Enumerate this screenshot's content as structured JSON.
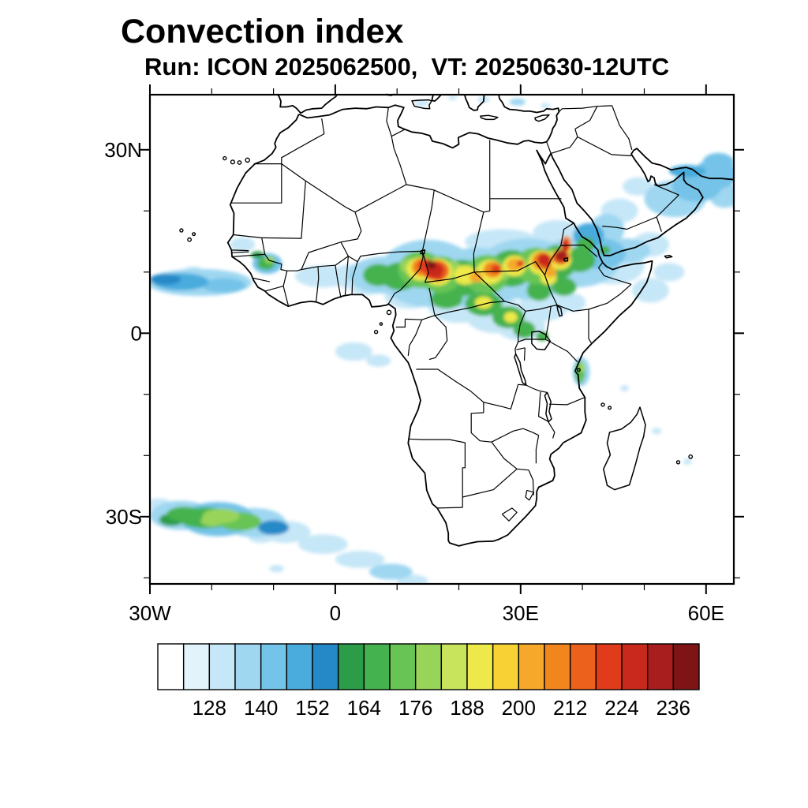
{
  "title": "Convection index",
  "subtitle": "Run: ICON 2025062500,  VT: 20250630-12UTC",
  "axes": {
    "x_tick_labels": [
      "30W",
      "0",
      "30E",
      "60E"
    ],
    "x_tick_lons": [
      -30,
      0,
      30,
      60
    ],
    "y_tick_labels": [
      "30N",
      "0",
      "30S"
    ],
    "y_tick_lats": [
      30,
      0,
      -30
    ]
  },
  "colorbar": {
    "tick_labels": [
      "128",
      "140",
      "152",
      "164",
      "176",
      "188",
      "200",
      "212",
      "224",
      "236"
    ],
    "level_start": 116,
    "level_step": 6,
    "colors": [
      "#FFFFFF",
      "#E3F3FB",
      "#C6E7F7",
      "#9FD7F1",
      "#74C3E8",
      "#4AACDD",
      "#2589C8",
      "#2D9C49",
      "#44B24E",
      "#68C455",
      "#98D45A",
      "#C8E35C",
      "#EDE94A",
      "#F8D134",
      "#F5A82A",
      "#F1861F",
      "#EC611B",
      "#E03C1B",
      "#C9281C",
      "#A81D1D",
      "#7E1416"
    ]
  },
  "chart_data": {
    "type": "heatmap",
    "title": "Convection index",
    "model_run": "ICON 2025062500",
    "valid_time": "20250630-12UTC",
    "projection": "equirectangular",
    "lon_range": [
      -30,
      64.5
    ],
    "lat_range": [
      -41,
      39
    ],
    "legend_values": [
      128,
      140,
      152,
      164,
      176,
      188,
      200,
      212,
      224,
      236
    ],
    "region_columns": [
      "lon",
      "lat",
      "rx_deg",
      "ry_deg",
      "value"
    ],
    "regions": [
      [
        -22,
        8.3,
        8.5,
        2.2,
        137
      ],
      [
        -25,
        8.4,
        4.5,
        1.4,
        146
      ],
      [
        -27.5,
        8.8,
        2.5,
        0.9,
        152
      ],
      [
        -18,
        7.8,
        3.5,
        1.2,
        140
      ],
      [
        -23,
        10.3,
        1.5,
        0.6,
        131
      ],
      [
        -15,
        14.5,
        2,
        1.2,
        128
      ],
      [
        -11,
        11.4,
        2.4,
        1.7,
        140
      ],
      [
        -11.2,
        11.4,
        1.4,
        1,
        164
      ],
      [
        -10.6,
        12,
        0.8,
        0.6,
        176
      ],
      [
        -12.6,
        12.8,
        1.1,
        0.6,
        158
      ],
      [
        -2,
        9.3,
        4.5,
        1.8,
        128
      ],
      [
        3,
        9.3,
        4,
        2,
        131
      ],
      [
        8,
        9.5,
        6,
        3,
        134
      ],
      [
        15,
        9.8,
        8,
        5.5,
        137
      ],
      [
        23,
        9,
        8,
        5,
        137
      ],
      [
        31,
        10.5,
        8,
        5,
        137
      ],
      [
        39,
        11.5,
        7,
        4,
        134
      ],
      [
        45,
        11,
        5,
        3,
        131
      ],
      [
        20,
        4.5,
        5,
        2.8,
        128
      ],
      [
        26,
        3,
        5,
        3,
        131
      ],
      [
        30,
        1.2,
        4,
        2.4,
        128
      ],
      [
        34,
        5,
        4,
        3,
        131
      ],
      [
        12,
        6,
        4,
        2,
        131
      ],
      [
        5,
        8,
        3,
        1.8,
        128
      ],
      [
        38.5,
        5,
        2,
        1.5,
        131
      ],
      [
        27,
        15,
        6,
        2,
        128
      ],
      [
        36,
        16.5,
        4,
        2,
        131
      ],
      [
        3,
        -3,
        3,
        1.5,
        128
      ],
      [
        7,
        -4.5,
        2,
        1,
        131
      ],
      [
        7,
        9.5,
        2.5,
        1.8,
        164
      ],
      [
        10.5,
        9.3,
        3,
        2.3,
        167
      ],
      [
        13.8,
        10.4,
        3.6,
        3,
        170
      ],
      [
        17,
        9.6,
        3.5,
        3,
        170
      ],
      [
        20.5,
        9,
        3.5,
        3,
        164
      ],
      [
        24.5,
        9.6,
        3.6,
        3.2,
        170
      ],
      [
        28.5,
        10.6,
        3.5,
        3,
        164
      ],
      [
        32.5,
        11,
        3.5,
        3,
        170
      ],
      [
        36,
        11.6,
        3,
        2.8,
        167
      ],
      [
        39.5,
        12,
        2.6,
        2,
        164
      ],
      [
        24,
        4.8,
        3,
        2,
        164
      ],
      [
        28,
        2.6,
        2.6,
        1.8,
        164
      ],
      [
        30.6,
        0.6,
        1.8,
        1.4,
        164
      ],
      [
        18,
        5.6,
        2.6,
        1.6,
        164
      ],
      [
        37,
        7.6,
        2,
        1.5,
        167
      ],
      [
        33,
        7,
        2,
        1.7,
        164
      ],
      [
        40.5,
        14.5,
        1.5,
        1.2,
        164
      ],
      [
        33.5,
        -0.5,
        1,
        0.8,
        164
      ],
      [
        12,
        11,
        1.5,
        1.2,
        178
      ],
      [
        19,
        10.5,
        1.5,
        1.3,
        176
      ],
      [
        27,
        10,
        1.4,
        1.2,
        178
      ],
      [
        35,
        12.5,
        1.4,
        1.2,
        176
      ],
      [
        13.8,
        10.5,
        2.3,
        1.9,
        190
      ],
      [
        16.6,
        10,
        2.4,
        2.2,
        192
      ],
      [
        21,
        9.5,
        1.8,
        1.6,
        188
      ],
      [
        25,
        10,
        2.2,
        2,
        190
      ],
      [
        29,
        11,
        1.9,
        1.7,
        190
      ],
      [
        33.4,
        11.5,
        2.2,
        2,
        192
      ],
      [
        36.4,
        12,
        1.8,
        1.6,
        190
      ],
      [
        24,
        5,
        1.4,
        1,
        188
      ],
      [
        28.4,
        2.6,
        1.1,
        0.9,
        188
      ],
      [
        37.4,
        14,
        0.9,
        1.3,
        190
      ],
      [
        34.5,
        9,
        1.3,
        1.1,
        188
      ],
      [
        14.2,
        10.8,
        1.8,
        1.5,
        208
      ],
      [
        16.5,
        10.2,
        1.9,
        1.7,
        212
      ],
      [
        25.5,
        10.4,
        1.5,
        1.3,
        206
      ],
      [
        29,
        11.2,
        1.2,
        1,
        204
      ],
      [
        33.5,
        11.8,
        1.6,
        1.5,
        210
      ],
      [
        36.5,
        12.4,
        1.4,
        1.2,
        212
      ],
      [
        37.4,
        14.6,
        0.8,
        1.3,
        206
      ],
      [
        22.8,
        9.2,
        1.1,
        0.9,
        204
      ],
      [
        34.8,
        10,
        1,
        0.9,
        204
      ],
      [
        14.6,
        11,
        1.3,
        1.1,
        222
      ],
      [
        16.2,
        10.3,
        1.3,
        1.2,
        228
      ],
      [
        15.4,
        9.6,
        0.9,
        0.8,
        220
      ],
      [
        33.8,
        12,
        1.1,
        1,
        224
      ],
      [
        36.6,
        12.6,
        1,
        0.9,
        230
      ],
      [
        37.2,
        14.3,
        0.6,
        1,
        224
      ],
      [
        26,
        10.5,
        0.8,
        0.7,
        218
      ],
      [
        30,
        11.4,
        0.6,
        0.6,
        218
      ],
      [
        15.5,
        11.2,
        0.8,
        0.7,
        238
      ],
      [
        16.8,
        9.3,
        0.6,
        0.6,
        218
      ],
      [
        34.2,
        11.2,
        0.7,
        0.6,
        220
      ],
      [
        43,
        13,
        4,
        2.5,
        140
      ],
      [
        47,
        13.5,
        4,
        2,
        137
      ],
      [
        51,
        14.5,
        3,
        2,
        131
      ],
      [
        44,
        17,
        2.8,
        2.5,
        134
      ],
      [
        41,
        16,
        2.5,
        2,
        146
      ],
      [
        46,
        20,
        3,
        2,
        128
      ],
      [
        51,
        7,
        3,
        2,
        128
      ],
      [
        54,
        10,
        2.5,
        1.5,
        131
      ],
      [
        55,
        22,
        5,
        3,
        134
      ],
      [
        58.5,
        24,
        4,
        2.5,
        140
      ],
      [
        61.5,
        26,
        3.5,
        2.5,
        140
      ],
      [
        63,
        22.5,
        2.5,
        2,
        134
      ],
      [
        57,
        26.5,
        3,
        1,
        149
      ],
      [
        62,
        28,
        2.5,
        1.5,
        143
      ],
      [
        49,
        24,
        2.5,
        1.5,
        128
      ],
      [
        43.6,
        13.6,
        0.9,
        0.7,
        164
      ],
      [
        14,
        37.6,
        1.2,
        0.5,
        131
      ],
      [
        24,
        38.2,
        1,
        0.5,
        128
      ],
      [
        29.5,
        37.8,
        1.3,
        0.6,
        134
      ],
      [
        34,
        37.2,
        0.8,
        0.4,
        131
      ],
      [
        19,
        38.5,
        0.7,
        0.4,
        128
      ],
      [
        -25,
        -29.8,
        5,
        2.4,
        137
      ],
      [
        -19,
        -30.4,
        6,
        2.8,
        140
      ],
      [
        -13,
        -31,
        5,
        2.4,
        137
      ],
      [
        -8,
        -32.5,
        4,
        1.8,
        131
      ],
      [
        -2,
        -34.5,
        4,
        1.6,
        128
      ],
      [
        -21,
        -30.2,
        4.5,
        1.7,
        164
      ],
      [
        -15.5,
        -30.8,
        3.5,
        1.5,
        170
      ],
      [
        -24.5,
        -29.6,
        2.8,
        1.2,
        167
      ],
      [
        -18.5,
        -29.9,
        3,
        1.2,
        176
      ],
      [
        -20,
        -30.7,
        1.8,
        0.9,
        178
      ],
      [
        -26.5,
        -30.5,
        2,
        1,
        158
      ],
      [
        -10,
        -31.8,
        2.5,
        1.2,
        152
      ],
      [
        4,
        -37,
        4,
        1.4,
        128
      ],
      [
        9,
        -39,
        3.5,
        1.3,
        134
      ],
      [
        12.5,
        -40.5,
        2.5,
        1,
        131
      ],
      [
        -28.5,
        -28,
        2,
        1,
        128
      ],
      [
        -12,
        -33.5,
        2,
        0.8,
        131
      ],
      [
        -9.5,
        -38.5,
        1.2,
        0.6,
        131
      ],
      [
        39.8,
        -6.3,
        1.4,
        2.4,
        137
      ],
      [
        39.6,
        -6.4,
        0.8,
        1.8,
        164
      ],
      [
        39.9,
        -5.6,
        0.5,
        0.9,
        178
      ],
      [
        39.7,
        -7.3,
        0.4,
        0.7,
        170
      ],
      [
        46.8,
        -9,
        0.7,
        0.5,
        128
      ],
      [
        52,
        -16,
        0.8,
        0.5,
        128
      ],
      [
        57,
        -21,
        0.7,
        0.5,
        131
      ]
    ]
  }
}
